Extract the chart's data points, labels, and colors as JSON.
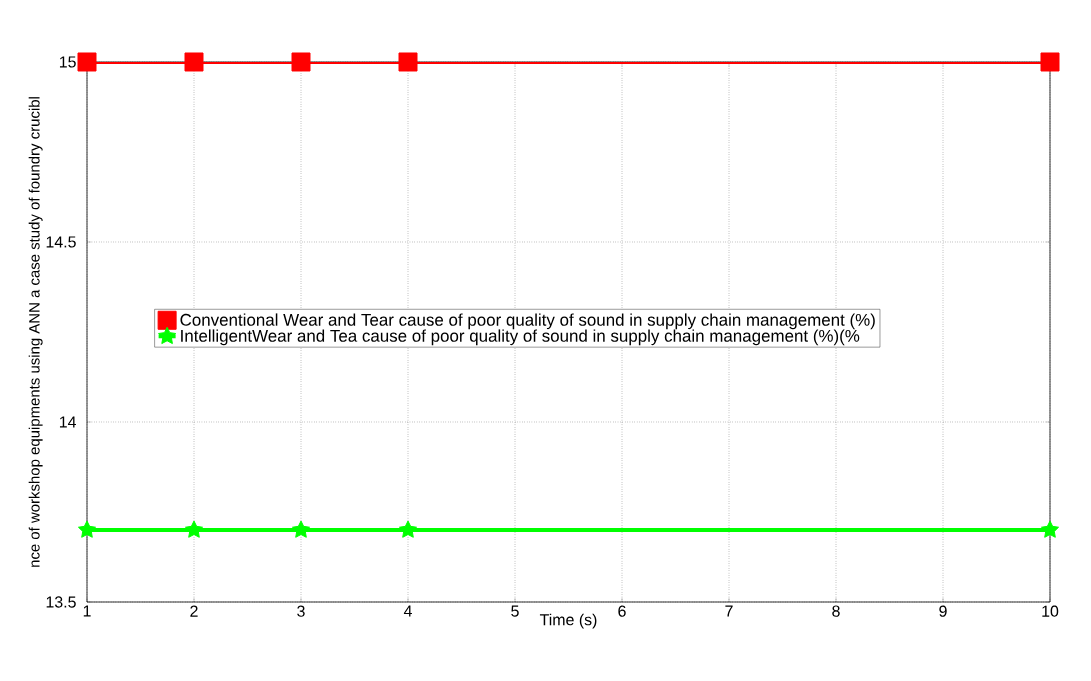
{
  "chart_data": {
    "type": "line",
    "xlabel": "Time (s)",
    "ylabel": "nce of workshop equipments  using ANN a case study of foundry crucibl",
    "x": [
      1,
      2,
      3,
      4,
      10
    ],
    "series": [
      {
        "name": "Conventional  Wear and Tear cause of poor quality of sound in supply chain management (%)",
        "color": "#ff0000",
        "marker": "square",
        "values": [
          15,
          15,
          15,
          15,
          15
        ]
      },
      {
        "name": "IntelligentWear and Tea  cause of poor quality of sound in supply chain management (%)(%",
        "color": "#00ff00",
        "marker": "star",
        "values": [
          13.7,
          13.7,
          13.7,
          13.7,
          13.7
        ]
      }
    ],
    "xlim": [
      1,
      10
    ],
    "xticks": [
      1,
      2,
      3,
      4,
      5,
      6,
      7,
      8,
      9,
      10
    ],
    "ylim": [
      13.5,
      15
    ],
    "yticks": [
      13.5,
      {
        "value": 14,
        "label": "14"
      },
      14.5,
      15
    ],
    "grid": true,
    "legend": "left",
    "line_style": "solid"
  }
}
